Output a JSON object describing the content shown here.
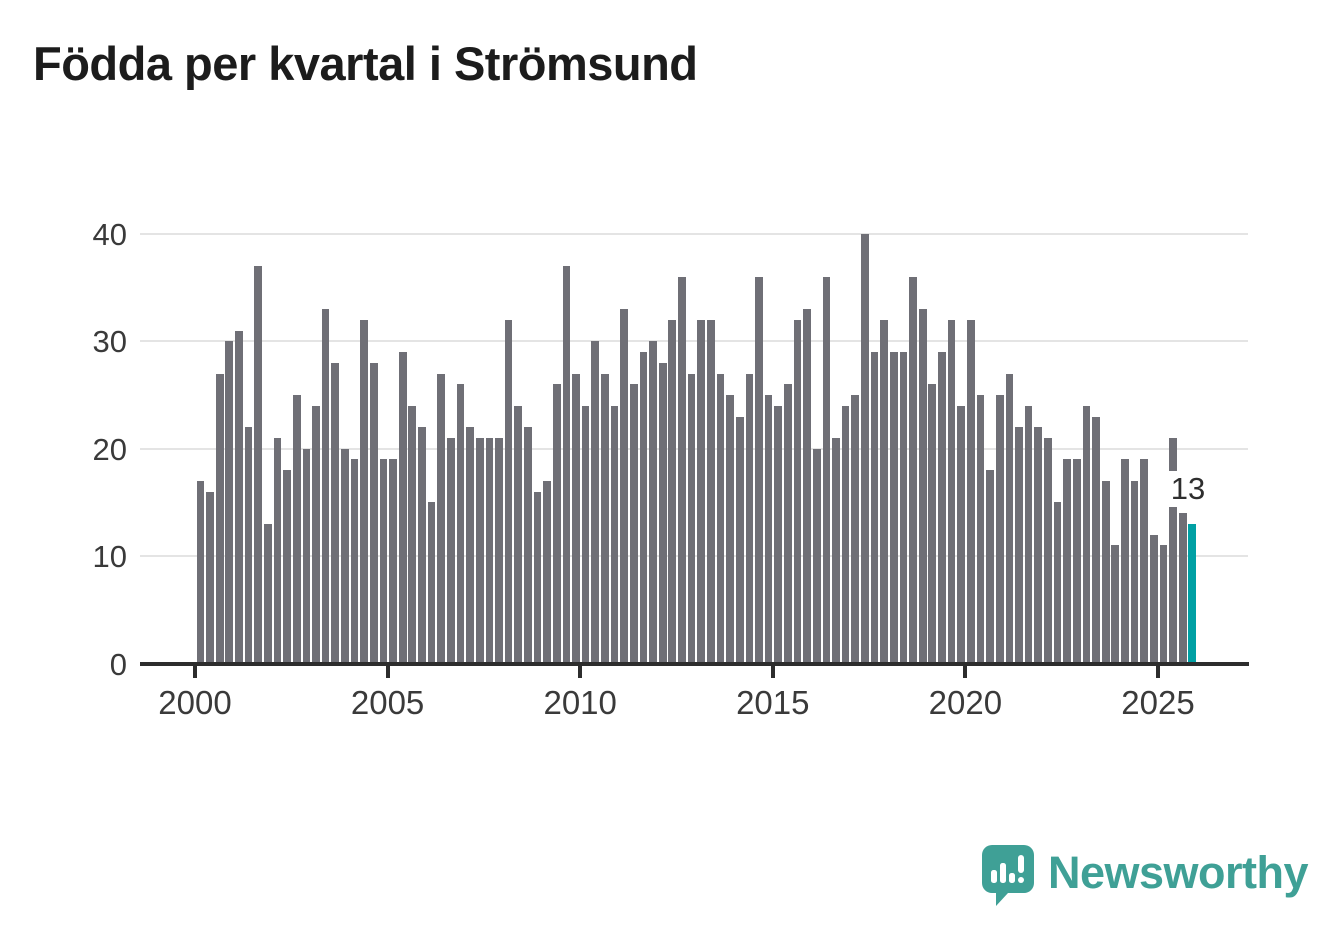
{
  "title": "Födda per kvartal i Strömsund",
  "chart_data": {
    "type": "bar",
    "title": "Födda per kvartal i Strömsund",
    "xlabel": "",
    "ylabel": "",
    "ylim": [
      0,
      40
    ],
    "y_ticks": [
      0,
      10,
      20,
      30,
      40
    ],
    "x_tick_labels": [
      "2000",
      "2005",
      "2010",
      "2015",
      "2020",
      "2025"
    ],
    "grid": "horizontal",
    "bar_color": "#6f6f76",
    "highlight_color": "#00a0a4",
    "period_start": "2000 Q1",
    "period_end": "2025 Q4",
    "frequency": "quarterly",
    "series": [
      {
        "name": "Födda per kvartal",
        "values": [
          17,
          16,
          27,
          30,
          31,
          22,
          37,
          13,
          21,
          18,
          25,
          20,
          24,
          33,
          28,
          20,
          19,
          32,
          28,
          19,
          19,
          29,
          24,
          22,
          15,
          27,
          21,
          26,
          22,
          21,
          21,
          21,
          32,
          24,
          22,
          16,
          17,
          26,
          37,
          27,
          24,
          30,
          27,
          24,
          33,
          26,
          29,
          30,
          28,
          32,
          36,
          27,
          32,
          32,
          27,
          25,
          23,
          27,
          36,
          25,
          24,
          26,
          32,
          33,
          20,
          36,
          21,
          24,
          25,
          40,
          29,
          32,
          29,
          29,
          36,
          33,
          26,
          29,
          32,
          24,
          32,
          25,
          18,
          25,
          27,
          22,
          24,
          22,
          21,
          15,
          19,
          19,
          24,
          23,
          17,
          11,
          19,
          17,
          19,
          12,
          11,
          21,
          14,
          13
        ]
      }
    ],
    "highlight": {
      "index": 103,
      "period": "2025 Q4",
      "value": 13,
      "label": "13"
    }
  },
  "annotation": {
    "value_label": "13"
  },
  "logo": {
    "text": "Newsworthy",
    "icon": "newsworthy-speech-bubble-chart-icon",
    "color": "#3fa096"
  }
}
